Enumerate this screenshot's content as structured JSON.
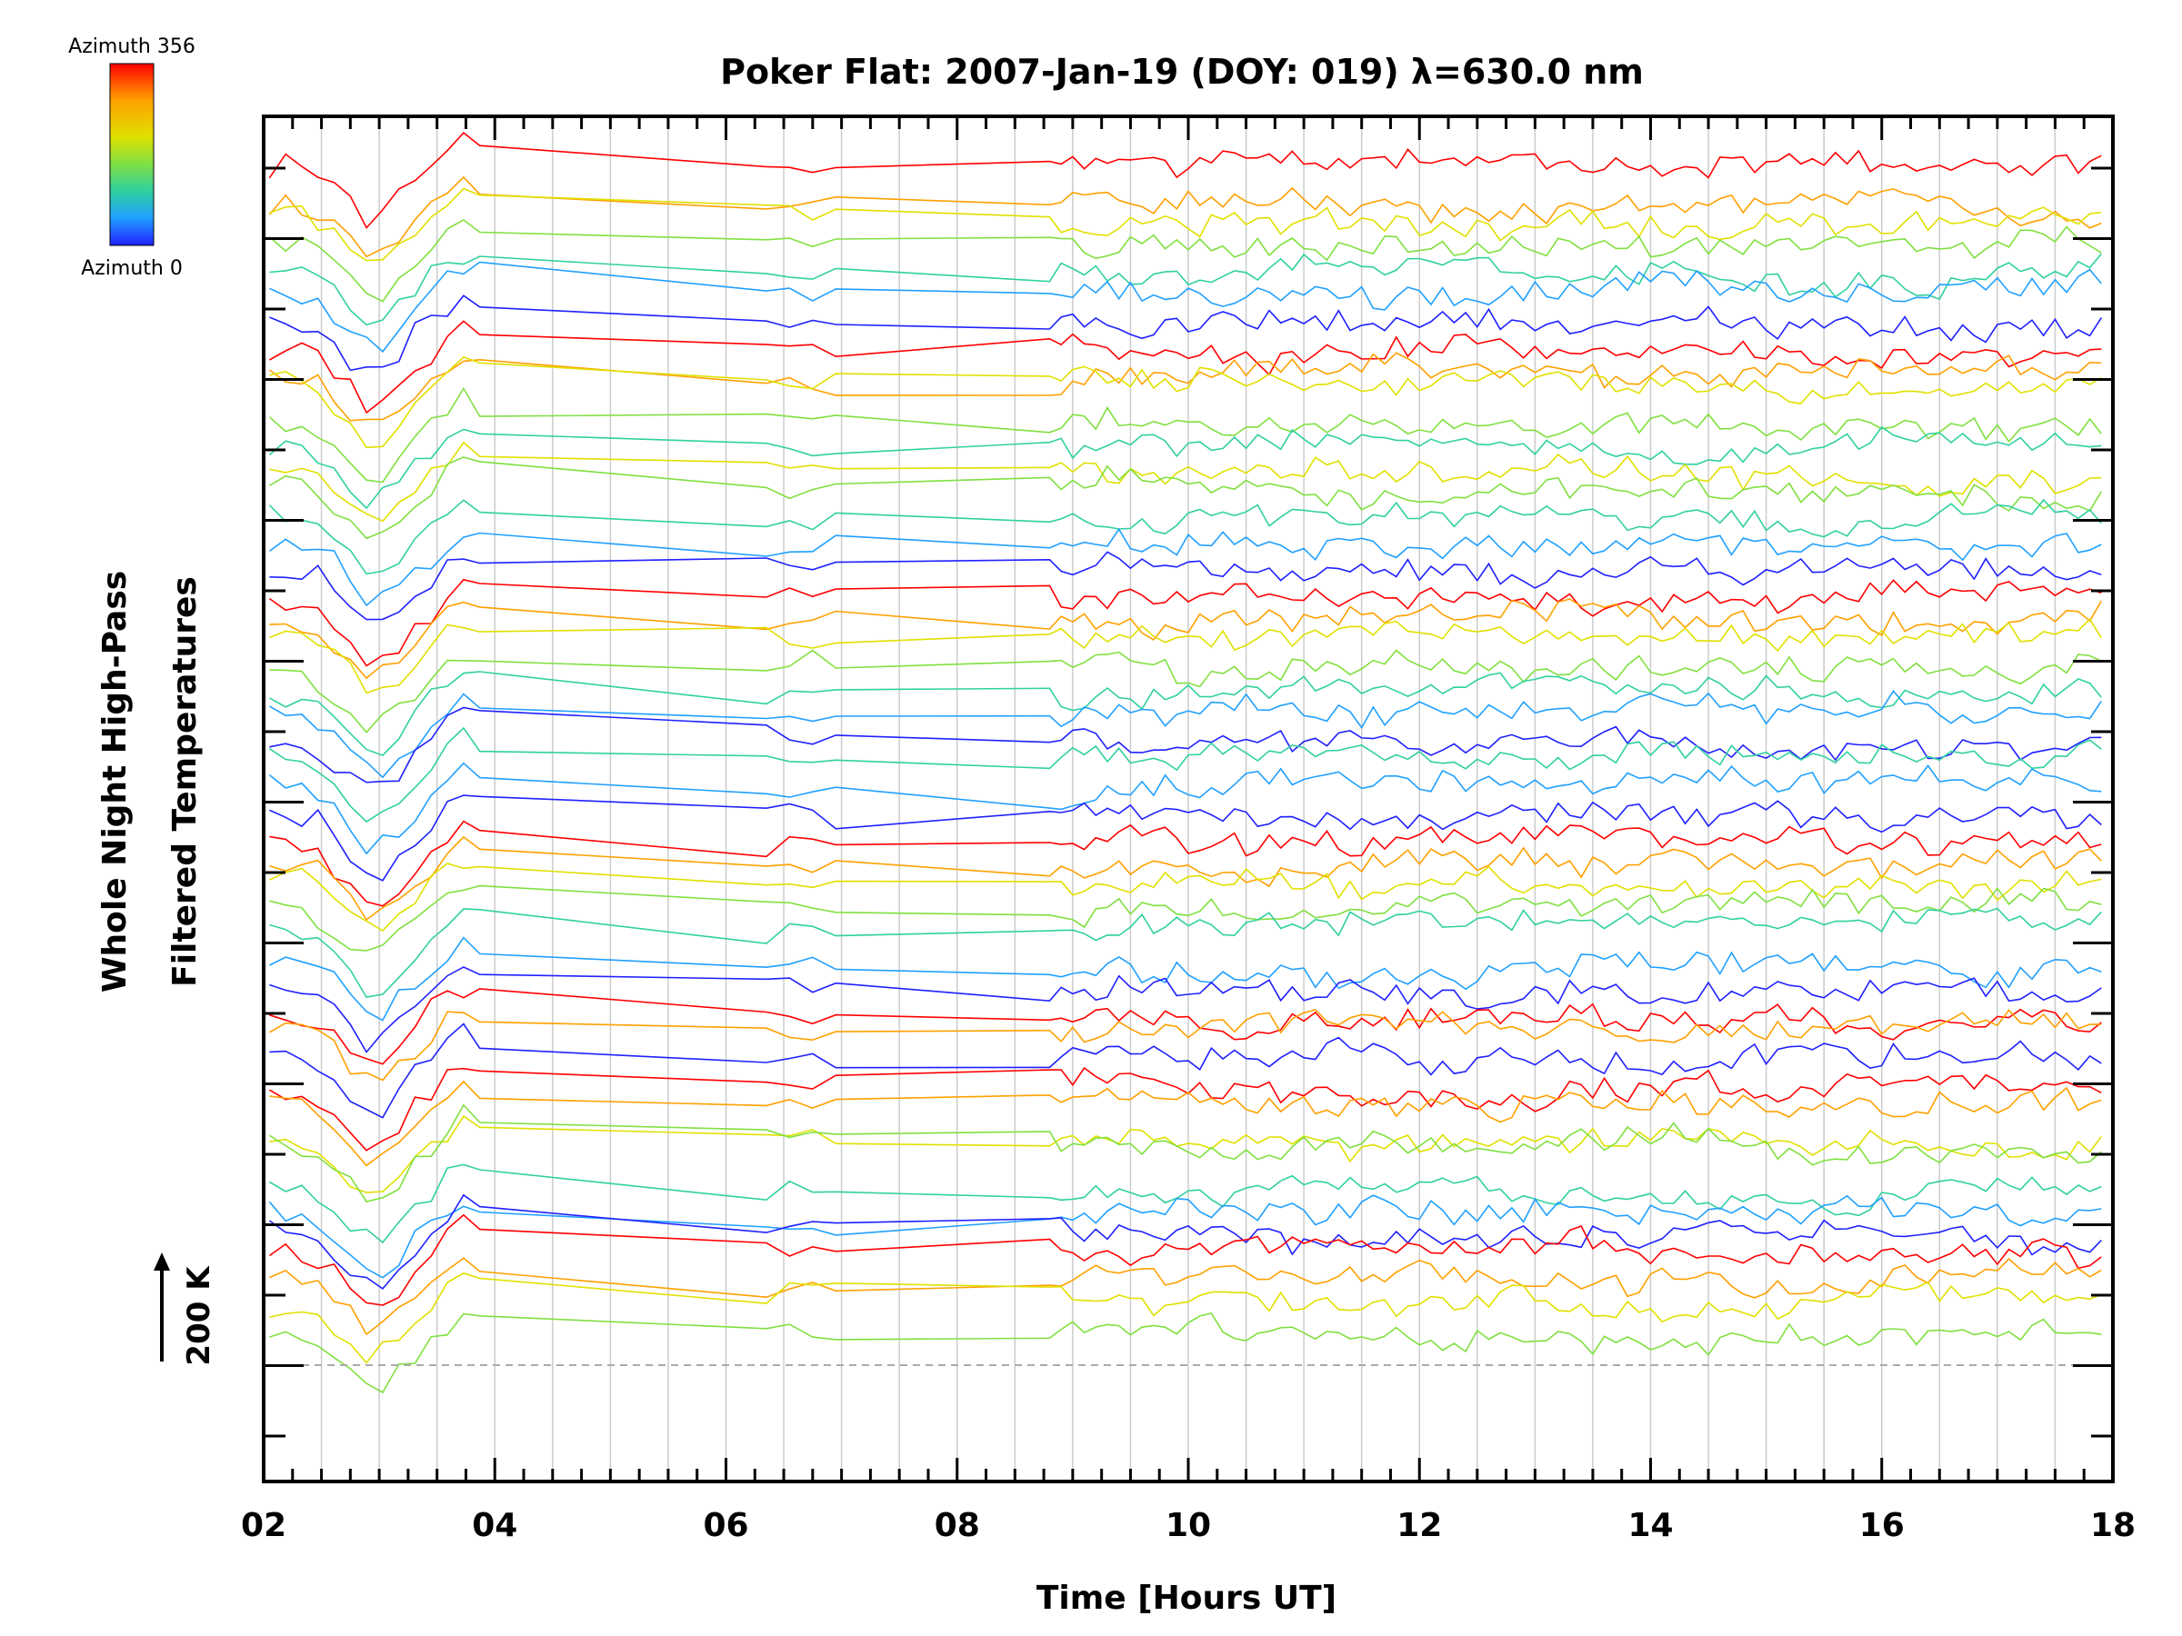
{
  "chart_data": {
    "type": "line",
    "title": "Poker Flat: 2007-Jan-19 (DOY: 019) λ=630.0 nm",
    "xlabel": "Time [Hours UT]",
    "ylabel_line1": "Whole Night High-Pass",
    "ylabel_line2": "Filtered Temperatures",
    "xlim": [
      2,
      18
    ],
    "xticks": [
      "02",
      "04",
      "06",
      "08",
      "10",
      "12",
      "14",
      "16",
      "18"
    ],
    "scale_label": "200 K",
    "colorbar": {
      "max_label": "Azimuth 356",
      "min_label": "Azimuth 0",
      "colors": [
        "#ff0000",
        "#ffa000",
        "#e0e000",
        "#80e040",
        "#30d0a0",
        "#20a0ff",
        "#2020ff"
      ]
    },
    "zero_line_color": "#aaaaaa",
    "grid_color": "#cccccc",
    "n_groups": 4,
    "traces_per_group": 12
  }
}
